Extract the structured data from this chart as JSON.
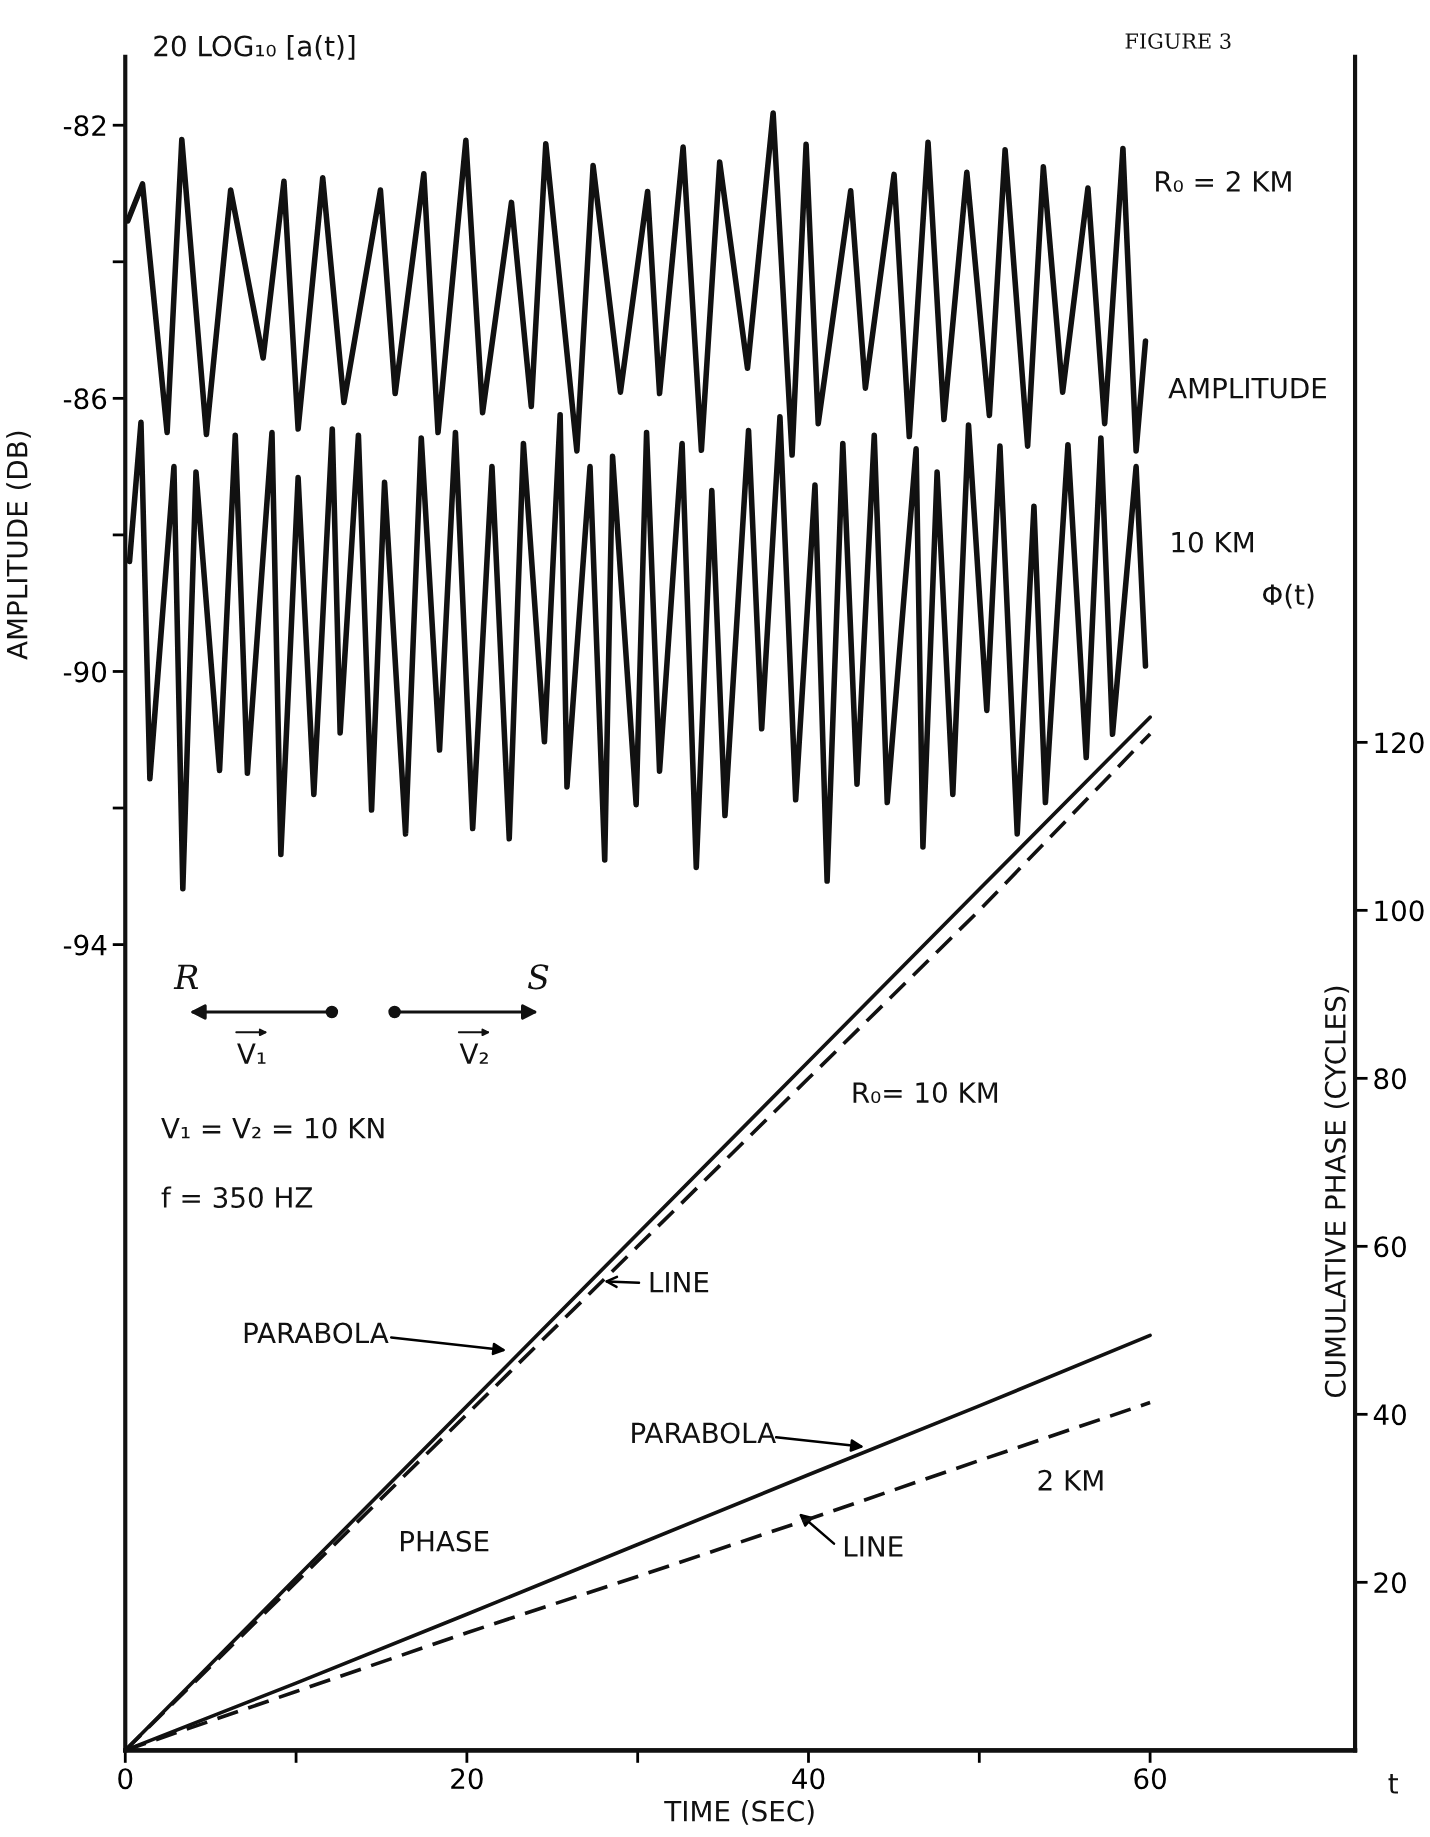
{
  "chart_data": {
    "type": "line",
    "title": "FIGURE 3",
    "xlabel": "TIME (SEC)",
    "ylabel": "AMPLITUDE (DB)",
    "y2label": "CUMULATIVE PHASE (CYCLES)",
    "xlim": [
      0,
      72
    ],
    "xticks": [
      0,
      {
        "value": 10,
        "label": null
      },
      20,
      {
        "value": 30,
        "label": null
      },
      40,
      {
        "value": 50,
        "label": null
      },
      60
    ],
    "ylim": [
      -105.8,
      -81
    ],
    "yticks": [
      -82,
      {
        "value": -84,
        "label": null
      },
      -86,
      {
        "value": -88,
        "label": null
      },
      -90,
      {
        "value": -92,
        "label": null
      },
      -94
    ],
    "y2lim": [
      0,
      201.6
    ],
    "y2ticks": [
      20,
      40,
      60,
      80,
      100,
      120
    ],
    "grid": false,
    "legend": false,
    "marker": "none",
    "annotations": [
      "20 LOG₁₀ [a(t)]",
      "Φ(t)",
      "t",
      "R₀ = 2 KM",
      "AMPLITUDE",
      "10 KM",
      "R₀= 10 KM",
      "LINE",
      "PARABOLA",
      "PARABOLA",
      "2 KM",
      "LINE",
      "PHASE",
      "V₁ = V₂ = 10 KN",
      "f = 350 HZ",
      "R",
      "S",
      "V₁",
      "V₂"
    ],
    "series": [
      {
        "color": "#111111",
        "line_style": "solid",
        "x": [
          0.15,
          1.01,
          2.45,
          3.31,
          4.75,
          6.17,
          8.07,
          9.29,
          10.12,
          11.56,
          12.8,
          14.94,
          15.8,
          17.48,
          18.31,
          19.94,
          20.92,
          22.61,
          23.77,
          24.62,
          26.44,
          27.39,
          28.99,
          30.58,
          31.28,
          32.66,
          33.73,
          34.8,
          36.43,
          37.93,
          39.04,
          39.86,
          40.57,
          42.47,
          43.33,
          45.01,
          45.9,
          47.0,
          47.93,
          49.27,
          50.59,
          51.51,
          52.83,
          53.75,
          54.88,
          56.36,
          57.34,
          58.41,
          59.18,
          59.73
        ],
        "values": [
          -83.4,
          -82.86,
          -86.5,
          -82.21,
          -86.53,
          -82.95,
          -85.41,
          -82.82,
          -86.45,
          -82.77,
          -86.06,
          -82.95,
          -85.93,
          -82.71,
          -86.5,
          -82.22,
          -86.21,
          -83.13,
          -86.12,
          -82.27,
          -86.77,
          -82.59,
          -85.91,
          -82.97,
          -85.93,
          -82.32,
          -86.76,
          -82.54,
          -85.56,
          -81.82,
          -86.83,
          -82.28,
          -86.37,
          -82.96,
          -85.85,
          -82.72,
          -86.56,
          -82.25,
          -86.31,
          -82.69,
          -86.25,
          -82.36,
          -86.7,
          -82.61,
          -85.91,
          -82.92,
          -86.37,
          -82.34,
          -86.77,
          -85.16
        ]
      },
      {
        "color": "#111111",
        "line_style": "solid",
        "x": [
          0.25,
          0.92,
          1.44,
          2.85,
          3.37,
          4.14,
          5.52,
          6.44,
          7.15,
          8.59,
          9.11,
          10.12,
          11.04,
          12.12,
          12.58,
          13.65,
          14.42,
          15.18,
          16.41,
          17.33,
          18.4,
          19.33,
          20.34,
          21.47,
          22.48,
          23.31,
          24.54,
          25.46,
          25.86,
          27.21,
          28.07,
          28.53,
          29.91,
          30.52,
          31.28,
          32.6,
          33.43,
          34.34,
          35.11,
          36.49,
          37.26,
          38.33,
          39.25,
          40.38,
          41.09,
          42.01,
          42.84,
          43.85,
          44.61,
          46.3,
          46.7,
          47.53,
          48.45,
          49.37,
          50.44,
          51.21,
          52.22,
          53.2,
          53.87,
          55.19,
          56.26,
          57.12,
          57.8,
          59.18,
          59.73
        ],
        "values": [
          -88.39,
          -86.35,
          -91.57,
          -87.0,
          -93.18,
          -87.08,
          -91.45,
          -86.54,
          -91.49,
          -86.5,
          -92.68,
          -87.16,
          -91.8,
          -86.45,
          -90.9,
          -86.54,
          -92.03,
          -87.23,
          -92.38,
          -86.58,
          -91.15,
          -86.5,
          -92.3,
          -87.0,
          -92.45,
          -86.66,
          -91.03,
          -86.24,
          -91.69,
          -87.0,
          -92.76,
          -86.85,
          -91.95,
          -86.5,
          -91.46,
          -86.66,
          -92.87,
          -87.35,
          -92.11,
          -86.47,
          -90.84,
          -86.27,
          -91.88,
          -87.27,
          -93.07,
          -86.66,
          -91.65,
          -86.54,
          -91.92,
          -86.74,
          -92.57,
          -87.08,
          -91.8,
          -86.39,
          -90.57,
          -86.7,
          -92.38,
          -87.58,
          -91.92,
          -86.68,
          -91.26,
          -86.58,
          -90.92,
          -87.0,
          -89.92
        ]
      },
      {
        "axis": "y2",
        "color": "#111111",
        "line_style": "solid",
        "x": [
          0,
          10,
          20,
          30,
          40,
          50,
          60
        ],
        "values": [
          0,
          20.5,
          41,
          61.5,
          82,
          102.5,
          123
        ]
      },
      {
        "axis": "y2",
        "color": "#111111",
        "line_style": "dashed",
        "x": [
          0,
          10,
          20,
          30,
          40,
          50,
          60
        ],
        "values": [
          0,
          20,
          40,
          60,
          80,
          100,
          121
        ]
      },
      {
        "axis": "y2",
        "color": "#111111",
        "line_style": "solid",
        "x": [
          0,
          10,
          20,
          30,
          40,
          50,
          60
        ],
        "values": [
          0,
          8,
          16.2,
          24.5,
          32.8,
          41,
          49.4
        ]
      },
      {
        "axis": "y2",
        "color": "#111111",
        "line_style": "dashed",
        "x": [
          0,
          10,
          20,
          30,
          40,
          50,
          60
        ],
        "values": [
          0,
          7,
          14,
          20.7,
          27.5,
          34.5,
          41.4
        ]
      }
    ]
  }
}
